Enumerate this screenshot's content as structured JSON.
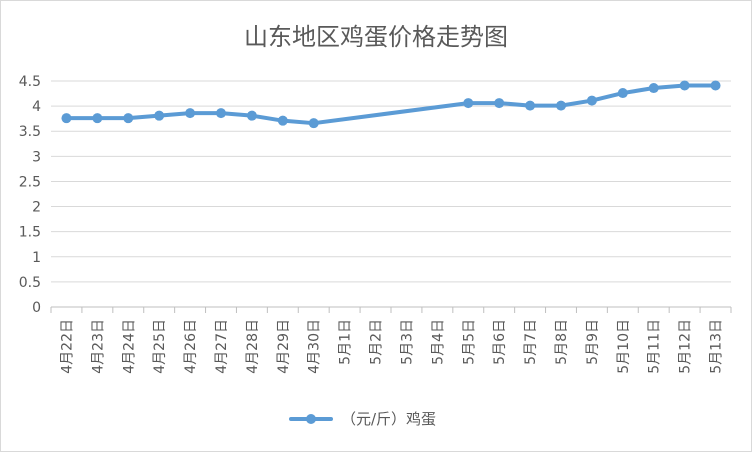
{
  "chart_data": {
    "type": "line",
    "title": "山东地区鸡蛋价格走势图",
    "categories": [
      "4月22日",
      "4月23日",
      "4月24日",
      "4月25日",
      "4月26日",
      "4月27日",
      "4月28日",
      "4月29日",
      "4月30日",
      "5月1日",
      "5月2日",
      "5月3日",
      "5月4日",
      "5月5日",
      "5月6日",
      "5月7日",
      "5月8日",
      "5月9日",
      "5月10日",
      "5月11日",
      "5月12日",
      "5月13日"
    ],
    "series": [
      {
        "name": "（元/斤）鸡蛋",
        "values": [
          3.76,
          3.76,
          3.76,
          3.81,
          3.86,
          3.86,
          3.81,
          3.71,
          3.66,
          null,
          null,
          null,
          null,
          4.06,
          4.06,
          4.01,
          4.01,
          4.11,
          4.26,
          4.36,
          4.41,
          4.41
        ]
      }
    ],
    "ylim": [
      0,
      4.5
    ],
    "yticks": [
      "0",
      "0.5",
      "1",
      "1.5",
      "2",
      "2.5",
      "3",
      "3.5",
      "4",
      "4.5"
    ],
    "grid": true,
    "legend_position": "bottom",
    "colors": {
      "series": "#5b9bd5",
      "grid": "#d9d9d9",
      "axis": "#bfbfbf",
      "text": "#595959"
    }
  }
}
